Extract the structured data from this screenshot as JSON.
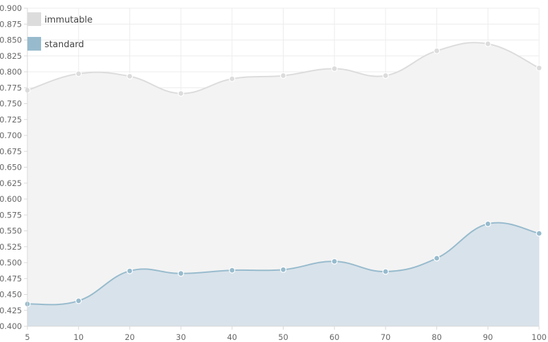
{
  "chart_data": {
    "type": "area",
    "title": "",
    "xlabel": "",
    "ylabel": "",
    "x": [
      5,
      10,
      20,
      30,
      40,
      50,
      60,
      70,
      80,
      90,
      100
    ],
    "ylim": [
      0.4,
      0.9
    ],
    "y_ticks": [
      "0.400",
      "0.425",
      "0.450",
      "0.475",
      "0.500",
      "0.525",
      "0.550",
      "0.575",
      "0.600",
      "0.625",
      "0.650",
      "0.675",
      "0.700",
      "0.725",
      "0.750",
      "0.775",
      "0.800",
      "0.825",
      "0.850",
      "0.875",
      "0.900"
    ],
    "grid": true,
    "legend_position": "top-left",
    "series": [
      {
        "name": "immutable",
        "values": [
          0.771,
          0.797,
          0.793,
          0.766,
          0.789,
          0.794,
          0.805,
          0.794,
          0.833,
          0.844,
          0.806
        ],
        "color": "#dcdcdc",
        "fill": "#f3f3f3"
      },
      {
        "name": "standard",
        "values": [
          0.435,
          0.44,
          0.487,
          0.483,
          0.488,
          0.489,
          0.502,
          0.486,
          0.507,
          0.561,
          0.546
        ],
        "color": "#97bbcd",
        "fill": "#d8e2ea"
      }
    ]
  }
}
